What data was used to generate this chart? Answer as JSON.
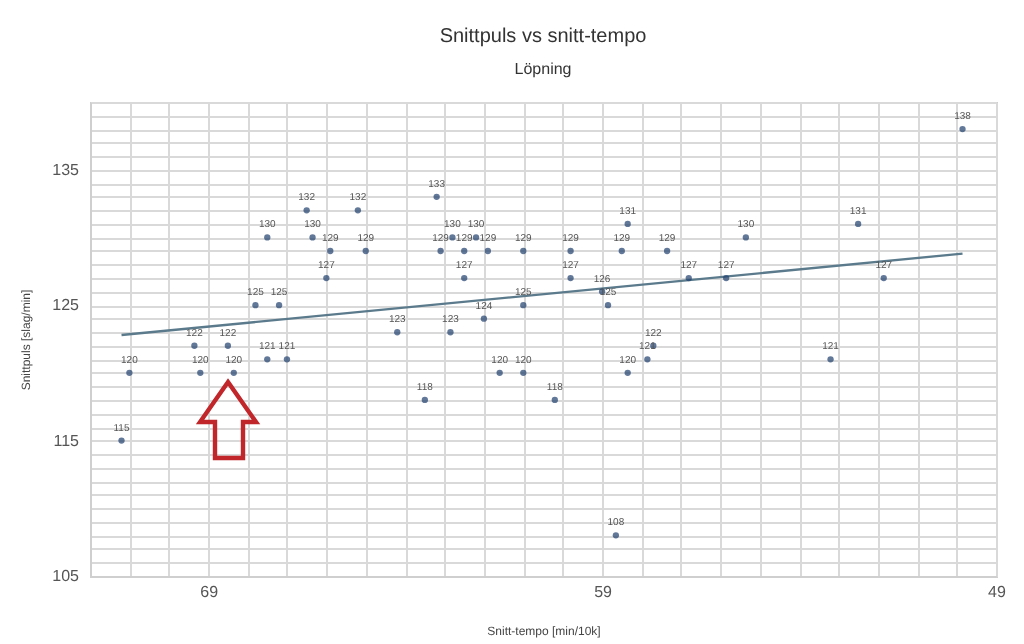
{
  "chart_data": {
    "type": "scatter",
    "title": "Snittpuls vs snitt-tempo",
    "subtitle": "Löpning",
    "xlabel": "Snitt-tempo [min/10k]",
    "ylabel": "Snittpuls [slag/min]",
    "xlim": [
      72,
      49
    ],
    "ylim": [
      105,
      140
    ],
    "xticks": [
      {
        "value": 72,
        "label": null
      },
      {
        "value": 71,
        "label": null
      },
      {
        "value": 70,
        "label": null
      },
      69,
      {
        "value": 68,
        "label": null
      },
      {
        "value": 67,
        "label": null
      },
      {
        "value": 66,
        "label": null
      },
      {
        "value": 65,
        "label": null
      },
      {
        "value": 64,
        "label": null
      },
      {
        "value": 63,
        "label": null
      },
      {
        "value": 62,
        "label": null
      },
      {
        "value": 61,
        "label": null
      },
      {
        "value": 60,
        "label": null
      },
      59,
      {
        "value": 58,
        "label": null
      },
      {
        "value": 57,
        "label": null
      },
      {
        "value": 56,
        "label": null
      },
      {
        "value": 55,
        "label": null
      },
      {
        "value": 54,
        "label": null
      },
      {
        "value": 53,
        "label": null
      },
      {
        "value": 52,
        "label": null
      },
      {
        "value": 51,
        "label": null
      },
      {
        "value": 50,
        "label": null
      },
      49
    ],
    "yticks": [
      105,
      {
        "value": 106,
        "label": null
      },
      {
        "value": 107,
        "label": null
      },
      {
        "value": 108,
        "label": null
      },
      {
        "value": 109,
        "label": null
      },
      {
        "value": 110,
        "label": null
      },
      {
        "value": 111,
        "label": null
      },
      {
        "value": 112,
        "label": null
      },
      {
        "value": 113,
        "label": null
      },
      {
        "value": 114,
        "label": null
      },
      115,
      {
        "value": 116,
        "label": null
      },
      {
        "value": 117,
        "label": null
      },
      {
        "value": 118,
        "label": null
      },
      {
        "value": 119,
        "label": null
      },
      {
        "value": 120,
        "label": null
      },
      {
        "value": 121,
        "label": null
      },
      {
        "value": 122,
        "label": null
      },
      {
        "value": 123,
        "label": null
      },
      {
        "value": 124,
        "label": null
      },
      125,
      {
        "value": 126,
        "label": null
      },
      {
        "value": 127,
        "label": null
      },
      {
        "value": 128,
        "label": null
      },
      {
        "value": 129,
        "label": null
      },
      {
        "value": 130,
        "label": null
      },
      {
        "value": 131,
        "label": null
      },
      {
        "value": 132,
        "label": null
      },
      {
        "value": 133,
        "label": null
      },
      {
        "value": 134,
        "label": null
      },
      135,
      {
        "value": 136,
        "label": null
      },
      {
        "value": 137,
        "label": null
      },
      {
        "value": 138,
        "label": null
      },
      {
        "value": 139,
        "label": null
      },
      {
        "value": 140,
        "label": null
      }
    ],
    "grid": true,
    "series": [
      {
        "color": "#1f3f6e",
        "marker": "circle",
        "value_labels": [
          "132",
          "132",
          "133",
          "130",
          "130",
          "129",
          "129",
          "127",
          "130",
          "130",
          "129",
          "129",
          "129",
          "127",
          "125",
          "125",
          "124",
          "123",
          "123",
          "122",
          "122",
          "121",
          "121",
          "120",
          "120",
          "120",
          "118",
          "115",
          "120",
          "120",
          "118",
          "120",
          "108",
          "121",
          "122",
          "121",
          "129",
          "125",
          "129",
          "127",
          "126",
          "125",
          "131",
          "129",
          "129",
          "127",
          "127",
          "130",
          "131",
          "127",
          "138"
        ],
        "x": [
          66.5,
          65.2,
          63.2,
          67.5,
          66.35,
          65.9,
          65.0,
          66.0,
          62.8,
          62.2,
          63.1,
          62.5,
          61.9,
          62.5,
          67.8,
          67.2,
          62.0,
          64.2,
          62.85,
          69.35,
          68.5,
          67.5,
          67.0,
          71.0,
          69.2,
          68.35,
          63.5,
          71.2,
          61.6,
          61.0,
          60.2,
          58.35,
          58.65,
          57.85,
          57.7,
          53.2,
          61.0,
          61.0,
          59.8,
          59.8,
          59.0,
          58.85,
          58.35,
          58.5,
          57.35,
          56.8,
          55.85,
          55.35,
          52.5,
          51.85,
          49.85
        ],
        "values": [
          132,
          132,
          133,
          130,
          130,
          129,
          129,
          127,
          130,
          130,
          129,
          129,
          129,
          127,
          125,
          125,
          124,
          123,
          123,
          122,
          122,
          121,
          121,
          120,
          120,
          120,
          118,
          115,
          120,
          120,
          118,
          120,
          108,
          121,
          122,
          121,
          129,
          125,
          129,
          127,
          126,
          125,
          131,
          129,
          129,
          127,
          127,
          130,
          131,
          127,
          138
        ]
      },
      {
        "type": "line",
        "color": "#5b7b8c",
        "x": [
          71.2,
          49.85
        ],
        "values": [
          122.8,
          128.8
        ]
      }
    ]
  }
}
